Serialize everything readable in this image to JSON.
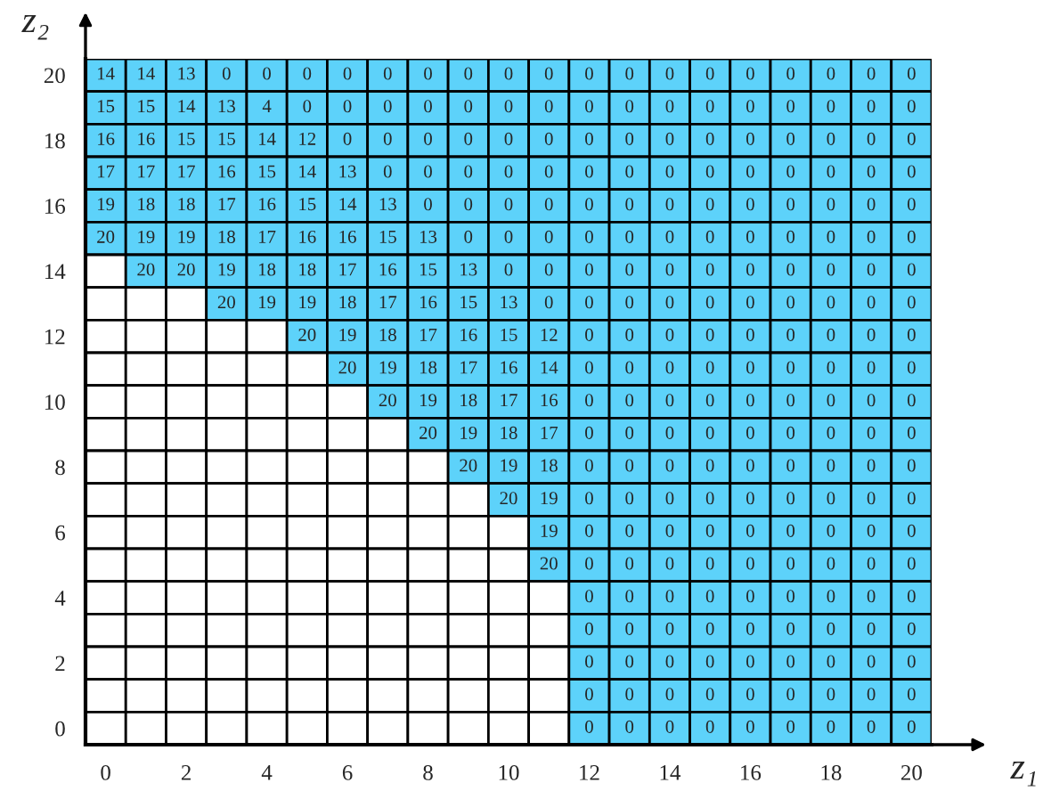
{
  "chart_data": {
    "type": "heatmap",
    "xlabel": "z₁",
    "ylabel": "z₂",
    "color": "#5dd2fa",
    "data_labels": true,
    "categories": [
      "0",
      null,
      "2",
      null,
      "4",
      null,
      "6",
      null,
      "8",
      null,
      "10",
      null,
      "12",
      null,
      "14",
      null,
      "16",
      null,
      "18",
      null,
      "20"
    ],
    "y_categories": [
      "20",
      null,
      "18",
      null,
      "16",
      null,
      "14",
      null,
      "12",
      null,
      "10",
      null,
      "8",
      null,
      "6",
      null,
      "4",
      null,
      "2",
      null,
      "0"
    ],
    "cells": [
      [
        14,
        14,
        13,
        0,
        0,
        0,
        0,
        0,
        0,
        0,
        0,
        0,
        0,
        0,
        0,
        0,
        0,
        0,
        0,
        0,
        0
      ],
      [
        15,
        15,
        14,
        13,
        4,
        0,
        0,
        0,
        0,
        0,
        0,
        0,
        0,
        0,
        0,
        0,
        0,
        0,
        0,
        0,
        0
      ],
      [
        16,
        16,
        15,
        15,
        14,
        12,
        0,
        0,
        0,
        0,
        0,
        0,
        0,
        0,
        0,
        0,
        0,
        0,
        0,
        0,
        0
      ],
      [
        17,
        17,
        17,
        16,
        15,
        14,
        13,
        0,
        0,
        0,
        0,
        0,
        0,
        0,
        0,
        0,
        0,
        0,
        0,
        0,
        0
      ],
      [
        19,
        18,
        18,
        17,
        16,
        15,
        14,
        13,
        0,
        0,
        0,
        0,
        0,
        0,
        0,
        0,
        0,
        0,
        0,
        0,
        0
      ],
      [
        20,
        19,
        19,
        18,
        17,
        16,
        16,
        15,
        13,
        0,
        0,
        0,
        0,
        0,
        0,
        0,
        0,
        0,
        0,
        0,
        0
      ],
      [
        null,
        20,
        20,
        19,
        18,
        18,
        17,
        16,
        15,
        13,
        0,
        0,
        0,
        0,
        0,
        0,
        0,
        0,
        0,
        0,
        0
      ],
      [
        null,
        null,
        null,
        20,
        19,
        19,
        18,
        17,
        16,
        15,
        13,
        0,
        0,
        0,
        0,
        0,
        0,
        0,
        0,
        0,
        0
      ],
      [
        null,
        null,
        null,
        null,
        null,
        20,
        19,
        18,
        17,
        16,
        15,
        12,
        0,
        0,
        0,
        0,
        0,
        0,
        0,
        0,
        0
      ],
      [
        null,
        null,
        null,
        null,
        null,
        null,
        20,
        19,
        18,
        17,
        16,
        14,
        0,
        0,
        0,
        0,
        0,
        0,
        0,
        0,
        0
      ],
      [
        null,
        null,
        null,
        null,
        null,
        null,
        null,
        20,
        19,
        18,
        17,
        16,
        0,
        0,
        0,
        0,
        0,
        0,
        0,
        0,
        0
      ],
      [
        null,
        null,
        null,
        null,
        null,
        null,
        null,
        null,
        20,
        19,
        18,
        17,
        0,
        0,
        0,
        0,
        0,
        0,
        0,
        0,
        0
      ],
      [
        null,
        null,
        null,
        null,
        null,
        null,
        null,
        null,
        null,
        20,
        19,
        18,
        0,
        0,
        0,
        0,
        0,
        0,
        0,
        0,
        0
      ],
      [
        null,
        null,
        null,
        null,
        null,
        null,
        null,
        null,
        null,
        null,
        20,
        19,
        0,
        0,
        0,
        0,
        0,
        0,
        0,
        0,
        0
      ],
      [
        null,
        null,
        null,
        null,
        null,
        null,
        null,
        null,
        null,
        null,
        null,
        19,
        0,
        0,
        0,
        0,
        0,
        0,
        0,
        0,
        0
      ],
      [
        null,
        null,
        null,
        null,
        null,
        null,
        null,
        null,
        null,
        null,
        null,
        20,
        0,
        0,
        0,
        0,
        0,
        0,
        0,
        0,
        0
      ],
      [
        null,
        null,
        null,
        null,
        null,
        null,
        null,
        null,
        null,
        null,
        null,
        null,
        0,
        0,
        0,
        0,
        0,
        0,
        0,
        0,
        0
      ],
      [
        null,
        null,
        null,
        null,
        null,
        null,
        null,
        null,
        null,
        null,
        null,
        null,
        0,
        0,
        0,
        0,
        0,
        0,
        0,
        0,
        0
      ],
      [
        null,
        null,
        null,
        null,
        null,
        null,
        null,
        null,
        null,
        null,
        null,
        null,
        0,
        0,
        0,
        0,
        0,
        0,
        0,
        0,
        0
      ],
      [
        null,
        null,
        null,
        null,
        null,
        null,
        null,
        null,
        null,
        null,
        null,
        null,
        0,
        0,
        0,
        0,
        0,
        0,
        0,
        0,
        0
      ],
      [
        null,
        null,
        null,
        null,
        null,
        null,
        null,
        null,
        null,
        null,
        null,
        null,
        0,
        0,
        0,
        0,
        0,
        0,
        0,
        0,
        0
      ]
    ]
  }
}
